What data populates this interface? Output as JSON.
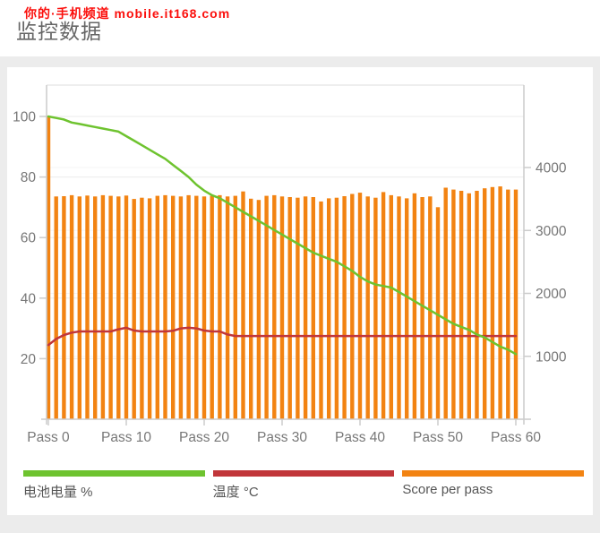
{
  "watermark": "你的·手机频道 mobile.it168.com",
  "title": "监控数据",
  "colors": {
    "battery": "#6EC32F",
    "temp": "#C1363A",
    "score": "#F28312",
    "axis_text": "#777777",
    "axis_line": "#cccccc",
    "grid_left": "#ebebeb",
    "grid_right": "#f5f5f5",
    "title_text": "#666666",
    "legend_text": "#555555",
    "watermark_red": "#fb0f0c",
    "card_bg": "#ffffff",
    "page_bg": "#ececec"
  },
  "chart_data": {
    "type": "bar",
    "title": "监控数据",
    "x_unit": "pass",
    "x_range": [
      0,
      60
    ],
    "x_tick_values": [
      0,
      10,
      20,
      30,
      40,
      50,
      60
    ],
    "x_tick_labels": [
      "Pass 0",
      "Pass 10",
      "Pass 20",
      "Pass 30",
      "Pass 40",
      "Pass 50",
      "Pass 60"
    ],
    "left_axis": {
      "ticks": [
        20,
        40,
        60,
        80,
        100
      ],
      "range": [
        0,
        110
      ],
      "label": ""
    },
    "right_axis": {
      "ticks": [
        1000,
        2000,
        3000,
        4000
      ],
      "range": [
        0,
        5300
      ],
      "label": ""
    },
    "grid": true,
    "legend_position": "bottom",
    "series": [
      {
        "name": "电池电量 %",
        "type": "line",
        "axis": "left",
        "color_key": "battery",
        "values": [
          100,
          99.5,
          99,
          98,
          97.5,
          97,
          96.5,
          96,
          95.5,
          95,
          93.5,
          92,
          90.5,
          89,
          87.5,
          86,
          84,
          82,
          80,
          77.5,
          75.5,
          74,
          73,
          71.5,
          70,
          68.5,
          67,
          65.5,
          64,
          62.5,
          61,
          59.5,
          58,
          56.5,
          55,
          54,
          53,
          52,
          50.5,
          49,
          47,
          45.5,
          44.5,
          44,
          43.5,
          42,
          40.5,
          39,
          37.5,
          36,
          34.5,
          33,
          31.5,
          30.5,
          29.5,
          28,
          27,
          25.5,
          24,
          23,
          21.5
        ]
      },
      {
        "name": "温度 °C",
        "type": "line",
        "axis": "left",
        "color_key": "temp",
        "values": [
          24.5,
          26.5,
          27.8,
          28.6,
          29,
          29,
          29,
          29,
          29,
          29.7,
          30.2,
          29.3,
          29,
          29,
          29,
          29,
          29.2,
          30,
          30.2,
          30,
          29.3,
          29,
          29,
          28,
          27.5,
          27.5,
          27.5,
          27.5,
          27.5,
          27.5,
          27.5,
          27.5,
          27.5,
          27.5,
          27.5,
          27.5,
          27.5,
          27.5,
          27.5,
          27.5,
          27.5,
          27.5,
          27.5,
          27.5,
          27.5,
          27.5,
          27.5,
          27.5,
          27.5,
          27.5,
          27.5,
          27.5,
          27.5,
          27.5,
          27.5,
          27.5,
          27.5,
          27.5,
          27.5,
          27.5,
          27.5
        ]
      },
      {
        "name": "Score per pass",
        "type": "bar",
        "axis": "right",
        "color_key": "score",
        "values": [
          4820,
          3540,
          3545,
          3560,
          3540,
          3555,
          3540,
          3560,
          3550,
          3540,
          3555,
          3500,
          3520,
          3510,
          3550,
          3560,
          3550,
          3540,
          3560,
          3550,
          3540,
          3550,
          3560,
          3540,
          3550,
          3620,
          3505,
          3485,
          3550,
          3560,
          3540,
          3530,
          3520,
          3540,
          3530,
          3460,
          3510,
          3520,
          3545,
          3580,
          3600,
          3540,
          3520,
          3610,
          3560,
          3540,
          3510,
          3590,
          3530,
          3540,
          3370,
          3680,
          3650,
          3630,
          3590,
          3630,
          3670,
          3690,
          3700,
          3650,
          3650
        ]
      }
    ]
  },
  "legend": {
    "items": [
      {
        "label": "电池电量 %",
        "color_key": "battery"
      },
      {
        "label": "温度 °C",
        "color_key": "temp"
      },
      {
        "label": "Score per pass",
        "color_key": "score"
      }
    ]
  }
}
